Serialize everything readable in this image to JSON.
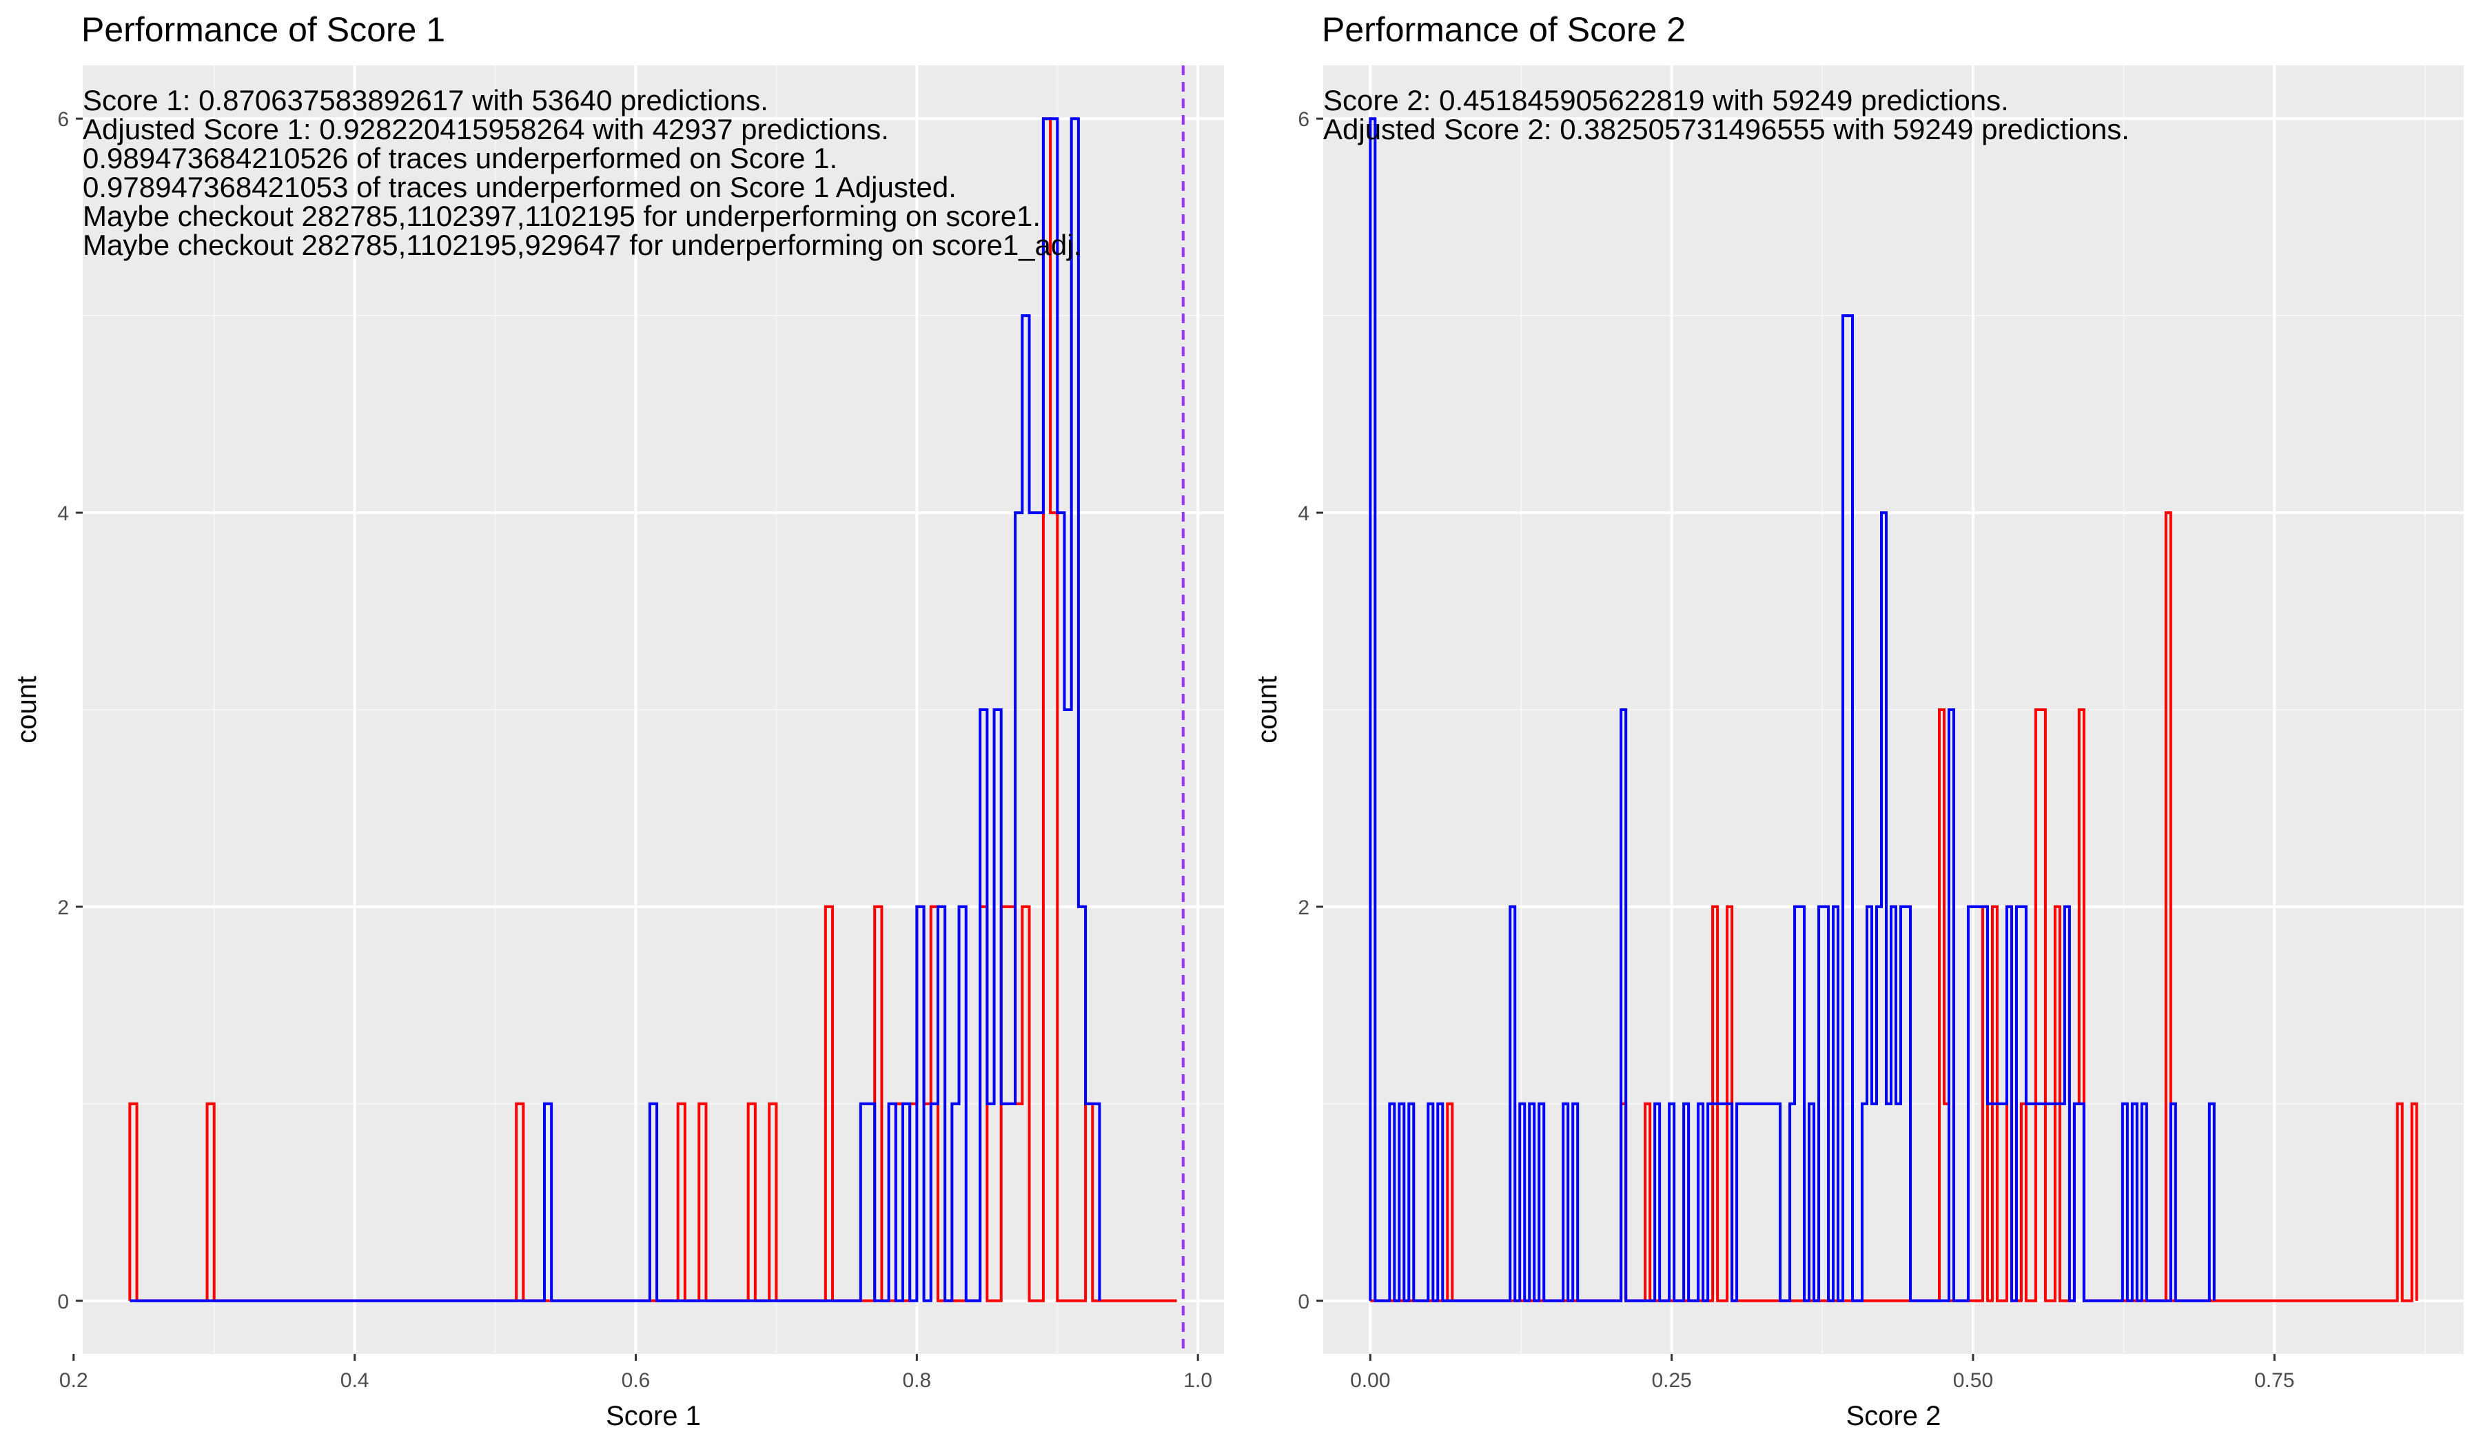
{
  "chart_data": [
    {
      "type": "histogram-step",
      "title": "Performance of Score 1",
      "xlabel": "Score 1",
      "ylabel": "count",
      "xlim": [
        0.2,
        1.0
      ],
      "ylim": [
        0,
        6
      ],
      "xticks": [
        "0.2",
        "0.4",
        "0.6",
        "0.8",
        "1.0"
      ],
      "xtick_values": [
        0.2,
        0.4,
        0.6,
        0.8,
        1.0
      ],
      "yticks": [
        "0",
        "2",
        "4",
        "6"
      ],
      "ytick_values": [
        0,
        2,
        4,
        6
      ],
      "grid": true,
      "vline": {
        "x": 0.9895,
        "color": "#9b30ff",
        "style": "dashed"
      },
      "bin_start": 0.24,
      "bin_width": 0.005,
      "annotations": [
        "Score 1: 0.870637583892617 with 53640 predictions.",
        "Adjusted Score 1: 0.928220415958264 with 42937 predictions.",
        "0.989473684210526 of traces underperformed on Score 1.",
        "0.978947368421053 of traces underperformed on Score 1 Adjusted.",
        "Maybe checkout 282785,1102397,1102195 for underperforming on score1.",
        "Maybe checkout 282785,1102195,929647 for underperforming on score1_adj."
      ],
      "series": [
        {
          "color": "#ff0000",
          "values": [
            1,
            0,
            0,
            0,
            0,
            0,
            0,
            0,
            0,
            0,
            0,
            1,
            0,
            0,
            0,
            0,
            0,
            0,
            0,
            0,
            0,
            0,
            0,
            0,
            0,
            0,
            0,
            0,
            0,
            0,
            0,
            0,
            0,
            0,
            0,
            0,
            0,
            0,
            0,
            0,
            0,
            0,
            0,
            0,
            0,
            0,
            0,
            0,
            0,
            0,
            0,
            0,
            0,
            0,
            0,
            1,
            0,
            0,
            0,
            0,
            0,
            0,
            0,
            0,
            0,
            0,
            0,
            0,
            0,
            0,
            0,
            0,
            0,
            0,
            0,
            0,
            0,
            0,
            1,
            0,
            0,
            1,
            0,
            0,
            0,
            0,
            0,
            0,
            1,
            0,
            0,
            1,
            0,
            0,
            0,
            0,
            0,
            0,
            0,
            2,
            0,
            0,
            0,
            0,
            0,
            0,
            2,
            0,
            0,
            1,
            0,
            1,
            2,
            1,
            2,
            0,
            0,
            0,
            0,
            0,
            0,
            2,
            0,
            0,
            2,
            2,
            1,
            2,
            0,
            0,
            6,
            4,
            0,
            0,
            0,
            0,
            1,
            0,
            0,
            0,
            0,
            0,
            0,
            0,
            0,
            0,
            0,
            0,
            0
          ]
        },
        {
          "color": "#0000ff",
          "values": [
            0,
            0,
            0,
            0,
            0,
            0,
            0,
            0,
            0,
            0,
            0,
            0,
            0,
            0,
            0,
            0,
            0,
            0,
            0,
            0,
            0,
            0,
            0,
            0,
            0,
            0,
            0,
            0,
            0,
            0,
            0,
            0,
            0,
            0,
            0,
            0,
            0,
            0,
            0,
            0,
            0,
            0,
            0,
            0,
            0,
            0,
            0,
            0,
            0,
            0,
            0,
            0,
            0,
            0,
            0,
            0,
            0,
            0,
            0,
            1,
            0,
            0,
            0,
            0,
            0,
            0,
            0,
            0,
            0,
            0,
            0,
            0,
            0,
            0,
            1,
            0,
            0,
            0,
            0,
            0,
            0,
            0,
            0,
            0,
            0,
            0,
            0,
            0,
            0,
            0,
            0,
            0,
            0,
            0,
            0,
            0,
            0,
            0,
            0,
            0,
            0,
            0,
            0,
            0,
            1,
            1,
            0,
            0,
            1,
            0,
            1,
            0,
            2,
            0,
            1,
            2,
            0,
            1,
            2,
            0,
            0,
            3,
            1,
            3,
            1,
            1,
            4,
            5,
            4,
            4,
            6,
            6,
            4,
            3,
            6,
            2,
            1,
            1
          ]
        }
      ]
    },
    {
      "type": "histogram-step",
      "title": "Performance of Score 2",
      "xlabel": "Score 2",
      "ylabel": "count",
      "xlim": [
        0.0,
        0.875
      ],
      "ylim": [
        0,
        6
      ],
      "xticks": [
        "0.00",
        "0.25",
        "0.50",
        "0.75"
      ],
      "xtick_values": [
        0.0,
        0.25,
        0.5,
        0.75
      ],
      "yticks": [
        "0",
        "2",
        "4",
        "6"
      ],
      "ytick_values": [
        0,
        2,
        4,
        6
      ],
      "grid": true,
      "bin_start": 0.0,
      "bin_width": 0.004,
      "annotations": [
        "Score 2: 0.451845905622819 with 59249 predictions.",
        "Adjusted Score 2: 0.382505731496555 with 59249 predictions."
      ],
      "series": [
        {
          "color": "#ff0000",
          "values": [
            0,
            0,
            0,
            0,
            0,
            0,
            0,
            0,
            0,
            0,
            0,
            0,
            0,
            0,
            0,
            0,
            1,
            0,
            0,
            0,
            0,
            0,
            0,
            0,
            0,
            0,
            0,
            0,
            0,
            0,
            0,
            0,
            0,
            0,
            0,
            0,
            0,
            0,
            0,
            0,
            0,
            0,
            0,
            0,
            0,
            0,
            0,
            0,
            0,
            0,
            0,
            0,
            1,
            0,
            0,
            0,
            0,
            1,
            0,
            0,
            0,
            0,
            0,
            0,
            0,
            0,
            0,
            0,
            0,
            0,
            0,
            2,
            0,
            0,
            2,
            0,
            0,
            0,
            0,
            0,
            0,
            0,
            0,
            0,
            0,
            0,
            0,
            0,
            0,
            0,
            0,
            0,
            0,
            0,
            0,
            0,
            0,
            0,
            0,
            0,
            0,
            0,
            0,
            0,
            0,
            0,
            0,
            0,
            0,
            0,
            0,
            0,
            0,
            0,
            0,
            0,
            0,
            0,
            3,
            1,
            0,
            0,
            0,
            0,
            0,
            0,
            0,
            2,
            0,
            2,
            0,
            0,
            2,
            0,
            0,
            1,
            0,
            0,
            3,
            3,
            0,
            0,
            2,
            0,
            0,
            0,
            1,
            3,
            0,
            0,
            0,
            0,
            0,
            0,
            0,
            0,
            0,
            0,
            0,
            0,
            0,
            0,
            0,
            0,
            0,
            4,
            0,
            0,
            0,
            0,
            0,
            0,
            0,
            0,
            0,
            0,
            0,
            0,
            0,
            0,
            0,
            0,
            0,
            0,
            0,
            0,
            0,
            0,
            0,
            0,
            0,
            0,
            0,
            0,
            0,
            0,
            0,
            0,
            0,
            0,
            0,
            0,
            0,
            0,
            0,
            0,
            0,
            0,
            0,
            0,
            0,
            0,
            0,
            1,
            0,
            0,
            1
          ]
        },
        {
          "color": "#0000ff",
          "values": [
            6,
            0,
            0,
            0,
            1,
            0,
            1,
            0,
            1,
            0,
            0,
            0,
            1,
            0,
            1,
            0,
            0,
            0,
            0,
            0,
            0,
            0,
            0,
            0,
            0,
            0,
            0,
            0,
            0,
            2,
            0,
            1,
            0,
            1,
            0,
            1,
            0,
            0,
            0,
            0,
            1,
            0,
            1,
            0,
            0,
            0,
            0,
            0,
            0,
            0,
            0,
            0,
            3,
            0,
            0,
            0,
            0,
            0,
            0,
            1,
            0,
            0,
            1,
            0,
            0,
            1,
            0,
            0,
            1,
            0,
            1,
            1,
            1,
            1,
            1,
            0,
            1,
            1,
            1,
            1,
            1,
            1,
            1,
            1,
            1,
            0,
            0,
            1,
            2,
            2,
            0,
            1,
            0,
            2,
            2,
            0,
            2,
            0,
            5,
            5,
            0,
            0,
            1,
            2,
            1,
            2,
            4,
            1,
            2,
            1,
            2,
            2,
            0,
            0,
            0,
            0,
            0,
            0,
            0,
            0,
            3,
            0,
            0,
            0,
            2,
            2,
            2,
            2,
            1,
            1,
            1,
            1,
            2,
            0,
            2,
            2,
            1,
            1,
            1,
            1,
            1,
            1,
            1,
            1,
            2,
            0,
            1,
            1,
            0,
            0,
            0,
            0,
            0,
            0,
            0,
            0,
            1,
            0,
            1,
            0,
            1,
            0,
            0,
            0,
            0,
            0,
            1,
            0,
            0,
            0,
            0,
            0,
            0,
            0,
            1
          ]
        }
      ]
    }
  ]
}
